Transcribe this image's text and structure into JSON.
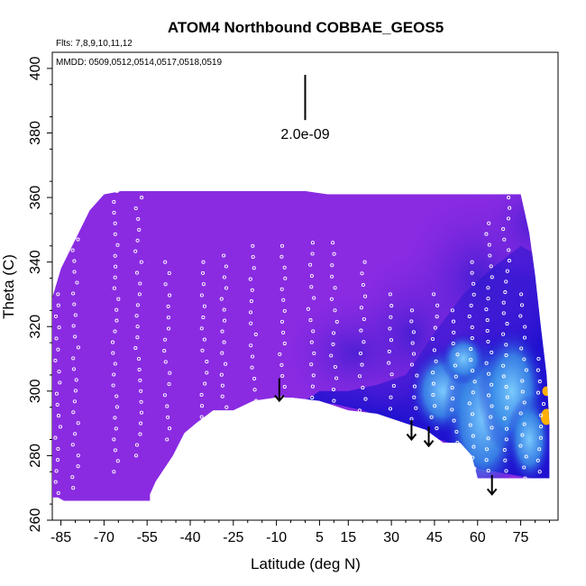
{
  "chart_data": {
    "type": "heatmap",
    "title": "ATOM4 Northbound COBBAE_GEOS5",
    "subtitle_flights": "Flts: 7,8,9,10,11,12",
    "subtitle_dates": "MMDD: 0509,0512,0514,0517,0518,0519",
    "xlabel": "Latitude (deg N)",
    "ylabel": "Theta (C)",
    "xlim": [
      -88,
      88
    ],
    "ylim": [
      260,
      405
    ],
    "x_ticks": [
      "-85",
      "-70",
      "-55",
      "-40",
      "-25",
      "-10",
      "5",
      "15",
      "30",
      "45",
      "60",
      "75"
    ],
    "x_tick_values": [
      -85,
      -70,
      -55,
      -40,
      -25,
      -10,
      5,
      15,
      30,
      45,
      60,
      75
    ],
    "y_ticks": [
      "260",
      "280",
      "300",
      "320",
      "340",
      "360",
      "380",
      "400"
    ],
    "y_tick_values": [
      260,
      280,
      300,
      320,
      340,
      360,
      380,
      400
    ],
    "scale_label": "2.0e-09",
    "scale_bar": {
      "x": 0,
      "y_top": 398,
      "y_bottom": 384
    },
    "colors": {
      "background_field": "#8a2be2",
      "low_band": "#1a10cf",
      "enhanced": "#3aa0ee",
      "high": "#ffb000",
      "points": "#ffffff"
    },
    "domain_outline": [
      [
        -88,
        267
      ],
      [
        -88,
        329
      ],
      [
        -85,
        338
      ],
      [
        -80,
        347
      ],
      [
        -75,
        356
      ],
      [
        -70,
        361
      ],
      [
        -64,
        362
      ],
      [
        -60,
        362
      ],
      [
        -50,
        362
      ],
      [
        -40,
        362
      ],
      [
        -30,
        362
      ],
      [
        -20,
        362
      ],
      [
        -10,
        362
      ],
      [
        0,
        362
      ],
      [
        8,
        361
      ],
      [
        20,
        361
      ],
      [
        30,
        361
      ],
      [
        45,
        361
      ],
      [
        60,
        361
      ],
      [
        72,
        361
      ],
      [
        75,
        361
      ],
      [
        78,
        349
      ],
      [
        80,
        336
      ],
      [
        82,
        320
      ],
      [
        84,
        305
      ],
      [
        85,
        290
      ],
      [
        85,
        273
      ],
      [
        60,
        273
      ],
      [
        58,
        280
      ],
      [
        54,
        284
      ],
      [
        48,
        284
      ],
      [
        42,
        288
      ],
      [
        35,
        290
      ],
      [
        25,
        293
      ],
      [
        15,
        294
      ],
      [
        5,
        297
      ],
      [
        -5,
        298
      ],
      [
        -10,
        298
      ],
      [
        -18,
        297
      ],
      [
        -25,
        294
      ],
      [
        -32,
        294
      ],
      [
        -38,
        290
      ],
      [
        -42,
        287
      ],
      [
        -46,
        280
      ],
      [
        -52,
        272
      ],
      [
        -54,
        268
      ],
      [
        -54,
        266
      ],
      [
        -84,
        266
      ],
      [
        -86,
        267
      ]
    ],
    "arrows": [
      {
        "lat": -9,
        "theta_top": 304,
        "theta_tip": 297
      },
      {
        "lat": 37,
        "theta_top": 291,
        "theta_tip": 285
      },
      {
        "lat": 43,
        "theta_top": 289,
        "theta_tip": 283
      },
      {
        "lat": 65,
        "theta_top": 274,
        "theta_tip": 268
      }
    ],
    "flight_tracks": [
      {
        "lat": -86,
        "theta_start": 265,
        "theta_end": 330
      },
      {
        "lat": -80,
        "theta_start": 270,
        "theta_end": 347
      },
      {
        "lat": -66,
        "theta_start": 275,
        "theta_end": 362
      },
      {
        "lat": -58,
        "theta_start": 280,
        "theta_end": 360
      },
      {
        "lat": -48,
        "theta_start": 285,
        "theta_end": 340
      },
      {
        "lat": -35,
        "theta_start": 292,
        "theta_end": 340
      },
      {
        "lat": -28,
        "theta_start": 295,
        "theta_end": 342
      },
      {
        "lat": -18,
        "theta_start": 297,
        "theta_end": 345
      },
      {
        "lat": -8,
        "theta_start": 298,
        "theta_end": 345
      },
      {
        "lat": 2,
        "theta_start": 298,
        "theta_end": 346
      },
      {
        "lat": 10,
        "theta_start": 297,
        "theta_end": 346
      },
      {
        "lat": 20,
        "theta_start": 294,
        "theta_end": 340
      },
      {
        "lat": 30,
        "theta_start": 291,
        "theta_end": 330
      },
      {
        "lat": 38,
        "theta_start": 288,
        "theta_end": 325
      },
      {
        "lat": 45,
        "theta_start": 285,
        "theta_end": 330
      },
      {
        "lat": 52,
        "theta_start": 284,
        "theta_end": 325
      },
      {
        "lat": 58,
        "theta_start": 276,
        "theta_end": 340
      },
      {
        "lat": 64,
        "theta_start": 272,
        "theta_end": 352
      },
      {
        "lat": 70,
        "theta_start": 272,
        "theta_end": 360
      },
      {
        "lat": 76,
        "theta_start": 273,
        "theta_end": 330
      },
      {
        "lat": 82,
        "theta_start": 275,
        "theta_end": 310
      }
    ]
  }
}
